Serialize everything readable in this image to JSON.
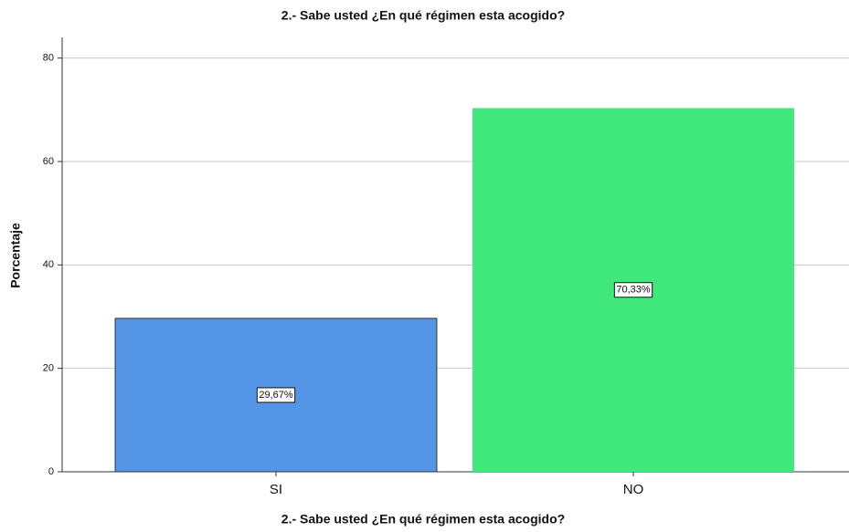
{
  "chart_data": {
    "type": "bar",
    "title": "2.- Sabe usted  ¿En qué  régimen esta acogido?",
    "x_label": "2.- Sabe usted  ¿En qué  régimen esta acogido?",
    "y_label": "Porcentaje",
    "categories": [
      "SI",
      "NO"
    ],
    "values": [
      29.67,
      70.33
    ],
    "value_labels": [
      "29,67%",
      "70,33%"
    ],
    "colors": [
      "#5595e5",
      "#40e87c"
    ],
    "ylim": [
      0,
      84
    ],
    "yticks": [
      0,
      20,
      40,
      60,
      80
    ],
    "grid": true
  }
}
